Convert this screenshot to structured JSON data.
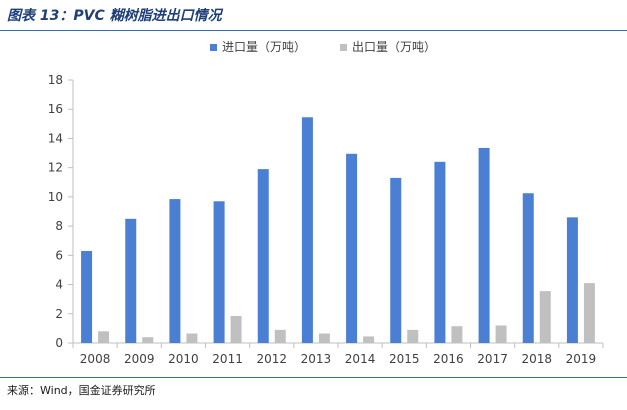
{
  "figure_title": "图表 13：PVC 糊树脂进出口情况",
  "source": "来源：Wind，国金证券研究所",
  "colors": {
    "import": "#4a7fd4",
    "export": "#c0c0c0",
    "axis": "#bfbfbf",
    "rule": "#2f6fb5"
  },
  "chart_data": {
    "type": "bar",
    "title": "",
    "xlabel": "",
    "ylabel": "",
    "ylim": [
      0,
      18
    ],
    "yticks": [
      0,
      2,
      4,
      6,
      8,
      10,
      12,
      14,
      16,
      18
    ],
    "grid": false,
    "legend_position": "top-center",
    "categories": [
      "2008",
      "2009",
      "2010",
      "2011",
      "2012",
      "2013",
      "2014",
      "2015",
      "2016",
      "2017",
      "2018",
      "2019"
    ],
    "series": [
      {
        "name": "进口量（万吨）",
        "color": "#4a7fd4",
        "values": [
          6.3,
          8.5,
          9.85,
          9.7,
          11.9,
          15.45,
          12.95,
          11.3,
          12.4,
          13.35,
          10.25,
          8.6
        ]
      },
      {
        "name": "出口量（万吨）",
        "color": "#c0c0c0",
        "values": [
          0.8,
          0.4,
          0.65,
          1.85,
          0.9,
          0.65,
          0.45,
          0.9,
          1.15,
          1.2,
          3.55,
          4.1
        ]
      }
    ]
  }
}
